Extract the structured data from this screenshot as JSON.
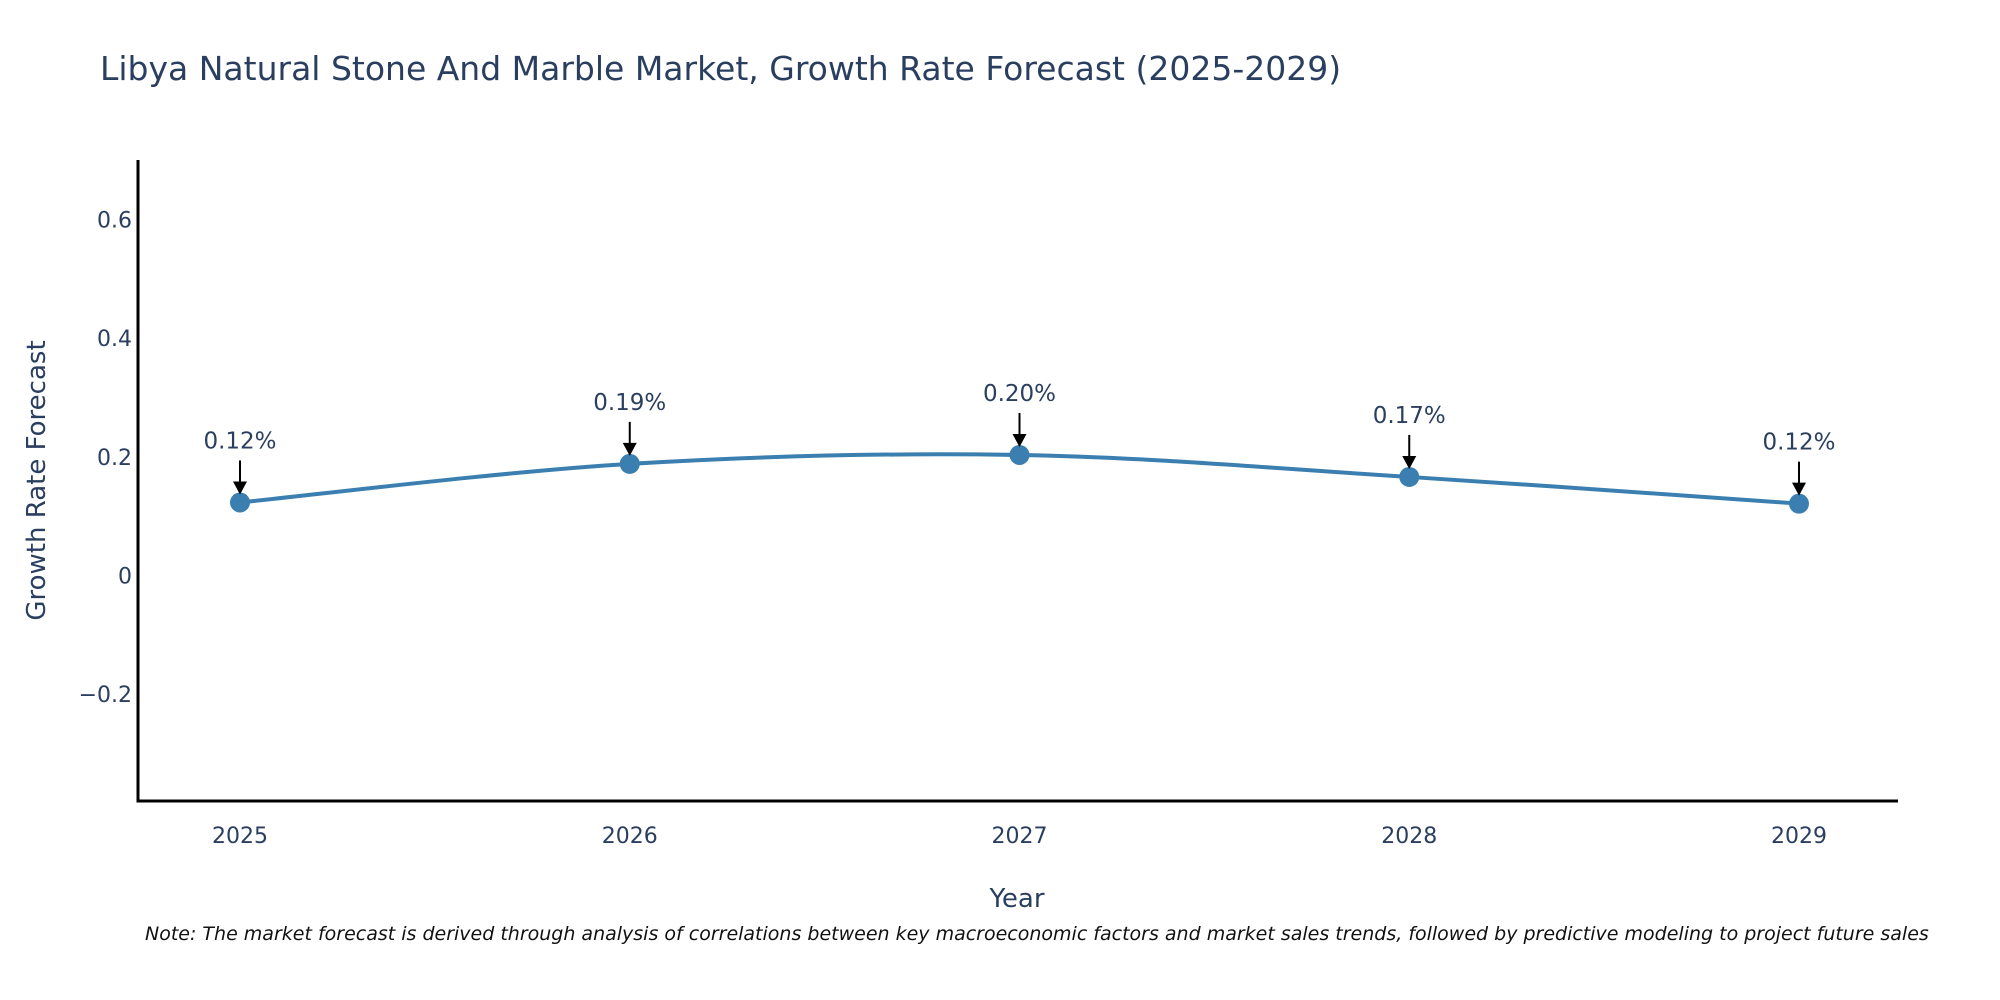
{
  "chart_data": {
    "type": "line",
    "title": "Libya Natural Stone And Marble Market, Growth Rate Forecast (2025-2029)",
    "xlabel": "Year",
    "ylabel": "Growth Rate Forecast",
    "x": [
      "2025",
      "2026",
      "2027",
      "2028",
      "2029"
    ],
    "series": [
      {
        "name": "Growth Rate Forecast",
        "values": [
          0.123,
          0.188,
          0.203,
          0.166,
          0.121
        ],
        "labels": [
          "0.12%",
          "0.19%",
          "0.20%",
          "0.17%",
          "0.12%"
        ],
        "color": "#3b7fb0"
      }
    ],
    "ylim": [
      -0.38,
      0.7
    ],
    "yticks": [
      0.6,
      0.4,
      0.2,
      0,
      -0.2
    ],
    "ytick_labels": [
      "0.6",
      "0.4",
      "0.2",
      "0",
      "−0.2"
    ],
    "grid": false,
    "line_shape": "spline"
  },
  "note": "Note: The market forecast is derived through analysis of correlations between key macroeconomic factors and market sales trends, followed by predictive modeling to project future sales",
  "colors": {
    "text": "#2a3f5f",
    "line": "#3b7fb0",
    "axis": "#000000",
    "arrow": "#000000"
  }
}
